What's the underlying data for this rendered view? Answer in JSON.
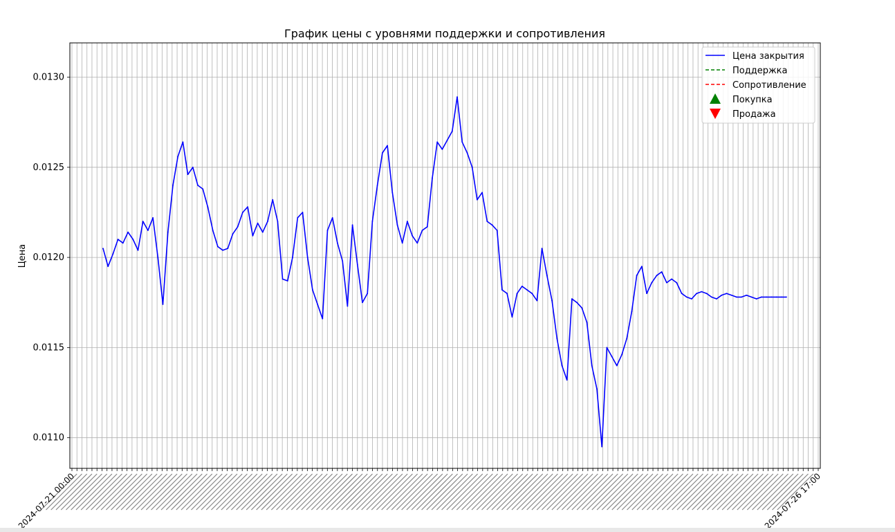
{
  "chart_data": {
    "type": "line",
    "title": "График цены с уровнями поддержки и сопротивления",
    "xlabel": "",
    "ylabel": "Цена",
    "ylim": [
      0.01083,
      0.01319
    ],
    "yticks": [
      "0.0110",
      "0.0115",
      "0.0120",
      "0.0125",
      "0.0130"
    ],
    "ytick_values": [
      0.011,
      0.0115,
      0.012,
      0.0125,
      0.013
    ],
    "x_tick_count": 150,
    "x_tick_labels_legible": [
      "2024-07-21 00:00",
      "2024-07-26 17:00"
    ],
    "grid": true,
    "legend_position": "upper right",
    "legend": [
      {
        "label": "Цена закрытия",
        "style": "line",
        "color": "#0000ff"
      },
      {
        "label": "Поддержка",
        "style": "dashed",
        "color": "#008000"
      },
      {
        "label": "Сопротивление",
        "style": "dashed",
        "color": "#ff0000"
      },
      {
        "label": "Покупка",
        "style": "triangle-up",
        "color": "#008000"
      },
      {
        "label": "Продажа",
        "style": "triangle-down",
        "color": "#ff0000"
      }
    ],
    "series": [
      {
        "name": "Цена закрытия",
        "color": "#0000ff",
        "note_x": "bar index 0..137",
        "x": [
          0,
          1,
          2,
          3,
          4,
          5,
          6,
          7,
          8,
          9,
          10,
          11,
          12,
          13,
          14,
          15,
          16,
          17,
          18,
          19,
          20,
          21,
          22,
          23,
          24,
          25,
          26,
          27,
          28,
          29,
          30,
          31,
          32,
          33,
          34,
          35,
          36,
          37,
          38,
          39,
          40,
          41,
          42,
          43,
          44,
          45,
          46,
          47,
          48,
          49,
          50,
          51,
          52,
          53,
          54,
          55,
          56,
          57,
          58,
          59,
          60,
          61,
          62,
          63,
          64,
          65,
          66,
          67,
          68,
          69,
          70,
          71,
          72,
          73,
          74,
          75,
          76,
          77,
          78,
          79,
          80,
          81,
          82,
          83,
          84,
          85,
          86,
          87,
          88,
          89,
          90,
          91,
          92,
          93,
          94,
          95,
          96,
          97,
          98,
          99,
          100,
          101,
          102,
          103,
          104,
          105,
          106,
          107,
          108,
          109,
          110,
          111,
          112,
          113,
          114,
          115,
          116,
          117,
          118,
          119,
          120,
          121,
          122,
          123,
          124,
          125,
          126,
          127,
          128,
          129,
          130,
          131,
          132,
          133,
          134,
          135,
          136,
          137
        ],
        "values": [
          0.01205,
          0.01195,
          0.01202,
          0.0121,
          0.01208,
          0.01214,
          0.0121,
          0.01204,
          0.0122,
          0.01215,
          0.01222,
          0.012,
          0.01174,
          0.01214,
          0.0124,
          0.01256,
          0.01264,
          0.01246,
          0.0125,
          0.0124,
          0.01238,
          0.01228,
          0.01215,
          0.01206,
          0.01204,
          0.01205,
          0.01213,
          0.01217,
          0.01225,
          0.01228,
          0.01212,
          0.01219,
          0.01214,
          0.0122,
          0.01232,
          0.0122,
          0.01188,
          0.01187,
          0.012,
          0.01222,
          0.01225,
          0.012,
          0.01182,
          0.01174,
          0.01166,
          0.01215,
          0.01222,
          0.01208,
          0.01198,
          0.01173,
          0.01218,
          0.01196,
          0.01175,
          0.0118,
          0.0122,
          0.0124,
          0.01258,
          0.01262,
          0.01236,
          0.01218,
          0.01208,
          0.0122,
          0.01212,
          0.01208,
          0.01215,
          0.01217,
          0.01244,
          0.01264,
          0.0126,
          0.01265,
          0.0127,
          0.01289,
          0.01264,
          0.01258,
          0.0125,
          0.01232,
          0.01236,
          0.0122,
          0.01218,
          0.01215,
          0.01182,
          0.0118,
          0.01167,
          0.0118,
          0.01184,
          0.01182,
          0.0118,
          0.01176,
          0.01205,
          0.0119,
          0.01176,
          0.01155,
          0.0114,
          0.01132,
          0.01177,
          0.01175,
          0.01172,
          0.01164,
          0.0114,
          0.01127,
          0.01095,
          0.0115,
          0.01145,
          0.0114,
          0.01146,
          0.01155,
          0.0117,
          0.0119,
          0.01195,
          0.0118,
          0.01186,
          0.0119,
          0.01192,
          0.01186,
          0.01188,
          0.01186,
          0.0118,
          0.01178,
          0.01177,
          0.0118,
          0.01181,
          0.0118,
          0.01178,
          0.01177,
          0.01179,
          0.0118,
          0.01179,
          0.01178,
          0.01178,
          0.01179,
          0.01178,
          0.01177,
          0.01178,
          0.01178,
          0.01178,
          0.01178,
          0.01178,
          0.01178
        ]
      }
    ]
  }
}
